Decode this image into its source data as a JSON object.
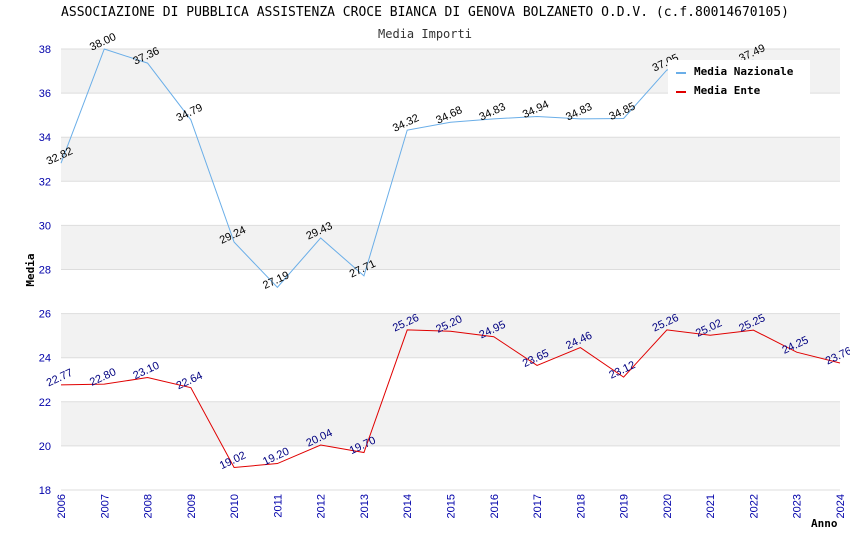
{
  "chart_data": {
    "type": "line",
    "title": "ASSOCIAZIONE DI PUBBLICA ASSISTENZA CROCE BIANCA DI GENOVA BOLZANETO O.D.V. (c.f.80014670105)",
    "subtitle": "Media Importi",
    "xlabel": "Anno",
    "ylabel": "Media",
    "ylim": [
      18,
      38
    ],
    "yticks": [
      "18",
      "20",
      "22",
      "24",
      "26",
      "28",
      "30",
      "32",
      "34",
      "36",
      "38"
    ],
    "categories": [
      "2006",
      "2007",
      "2008",
      "2009",
      "2010",
      "2011",
      "2012",
      "2013",
      "2014",
      "2015",
      "2016",
      "2017",
      "2018",
      "2019",
      "2020",
      "2021",
      "2022",
      "2023",
      "2024"
    ],
    "series": [
      {
        "name": "Media Nazionale",
        "color": "#6aaee8",
        "values": [
          32.82,
          38.0,
          37.36,
          34.79,
          29.24,
          27.19,
          29.43,
          27.71,
          34.32,
          34.68,
          34.83,
          34.94,
          34.83,
          34.85,
          37.05,
          null,
          37.49,
          null,
          null
        ],
        "labels": [
          "32.82",
          "38.00",
          "37.36",
          "34.79",
          "29.24",
          "27.19",
          "29.43",
          "27.71",
          "34.32",
          "34.68",
          "34.83",
          "34.94",
          "34.83",
          "34.85",
          "37.05",
          "",
          "37.49",
          "",
          ""
        ]
      },
      {
        "name": "Media Ente",
        "color": "#e00000",
        "values": [
          22.77,
          22.8,
          23.1,
          22.64,
          19.02,
          19.2,
          20.04,
          19.7,
          25.26,
          25.2,
          24.95,
          23.65,
          24.46,
          23.12,
          25.26,
          25.02,
          25.25,
          24.25,
          23.76
        ],
        "labels": [
          "22.77",
          "22.80",
          "23.10",
          "22.64",
          "19.02",
          "19.20",
          "20.04",
          "19.70",
          "25.26",
          "25.20",
          "24.95",
          "23.65",
          "24.46",
          "23.12",
          "25.26",
          "25.02",
          "25.25",
          "24.25",
          "23.76"
        ]
      }
    ],
    "grid": true,
    "legend_position": "top-right"
  }
}
